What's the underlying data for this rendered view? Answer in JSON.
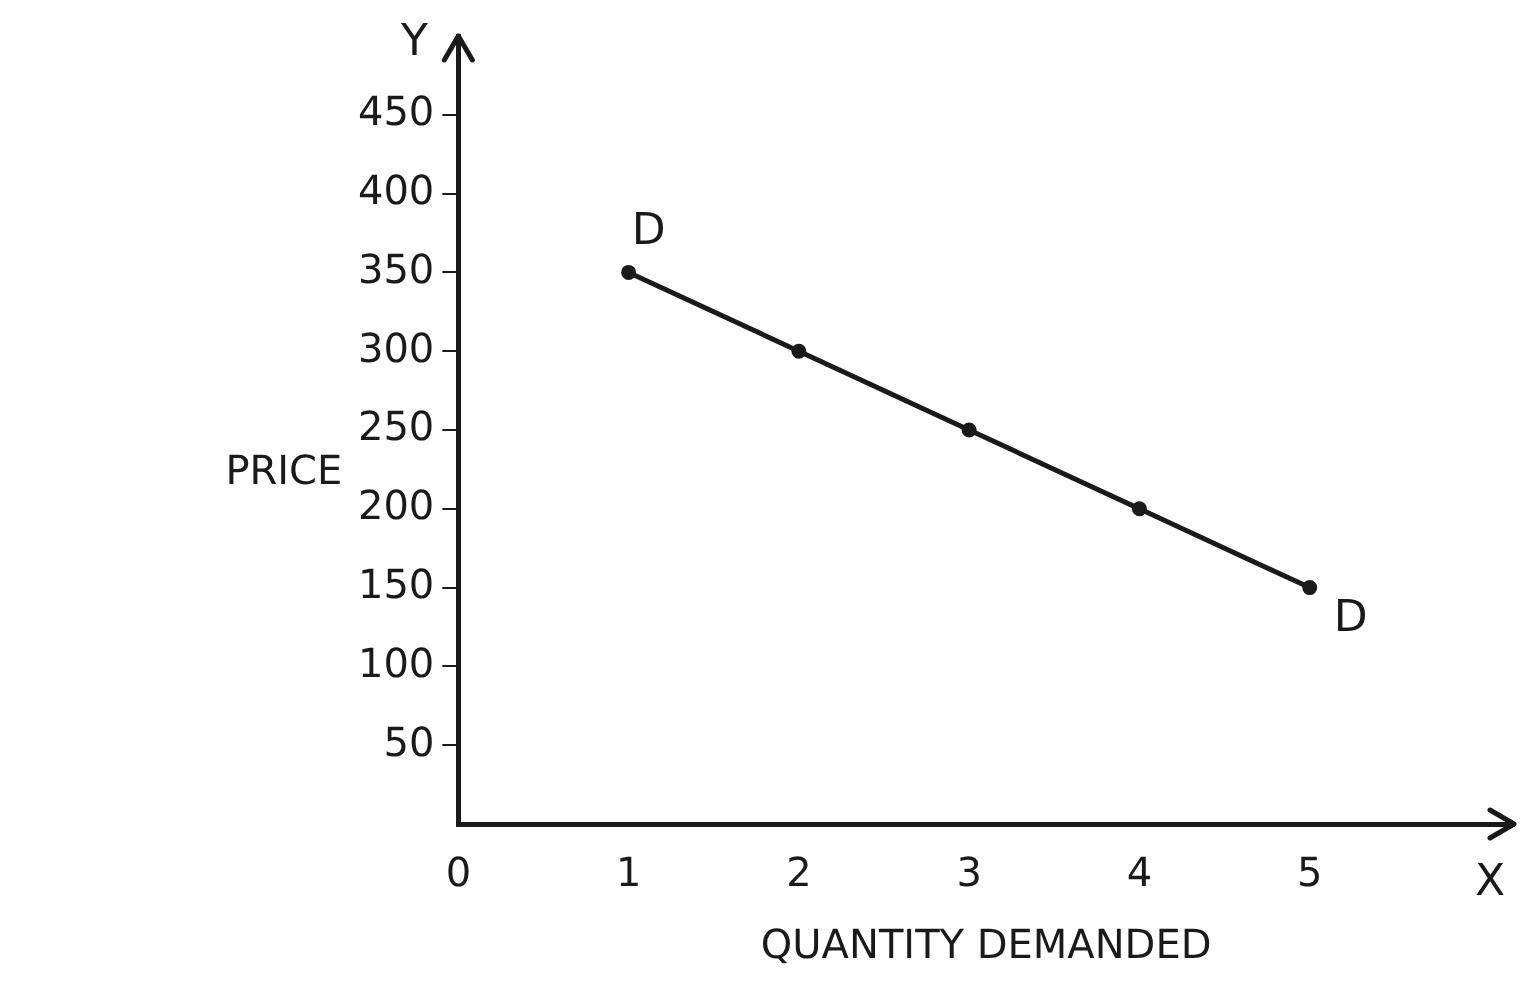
{
  "chart_data": {
    "type": "line",
    "xlabel": "QUANTITY DEMANDED",
    "ylabel": "PRICE",
    "x": [
      1,
      2,
      3,
      4,
      5
    ],
    "series": [
      {
        "color": "#1a1a1a",
        "values": [
          350,
          300,
          250,
          200,
          150
        ]
      }
    ],
    "xlim": [
      0,
      6.2
    ],
    "ylim": [
      0,
      500
    ],
    "xticks": [
      0,
      1,
      2,
      3,
      4,
      5
    ],
    "yticks": [
      50,
      100,
      150,
      200,
      250,
      300,
      350,
      400,
      450
    ],
    "annotations": [
      {
        "text": "D",
        "x": 1,
        "y": 350
      },
      {
        "text": "D",
        "x": 5,
        "y": 150
      },
      "Y",
      "X"
    ],
    "grid": false,
    "legend": false,
    "marker": "circle",
    "line_style": "solid"
  }
}
